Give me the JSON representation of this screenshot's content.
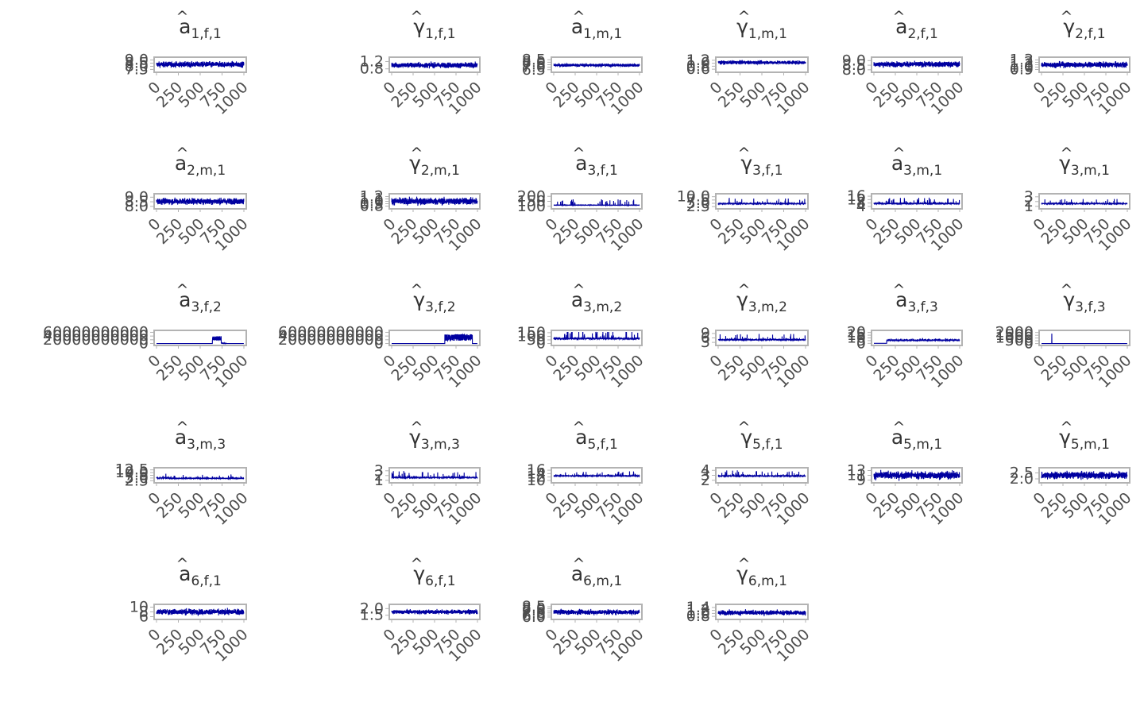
{
  "chart_data": {
    "type": "line",
    "x_ticks": [
      "0",
      "250",
      "500",
      "750",
      "1000"
    ],
    "xlim": [
      0,
      1000
    ],
    "series_color": "#0000A0",
    "panel_border_color": "#B3B3B3",
    "grid": false,
    "panels": [
      {
        "greek": "a",
        "sub": "1,f,1",
        "y_ticks": [
          "7.5",
          "8.0",
          "8.5",
          "9.0"
        ],
        "ylim": [
          7.3,
          9.2
        ],
        "base": 8.3,
        "amp": 0.45,
        "pattern": "dense"
      },
      {
        "greek": "γ",
        "sub": "1,f,1",
        "y_ticks": [
          "0.8",
          "1.2"
        ],
        "ylim": [
          0.7,
          1.35
        ],
        "base": 1.0,
        "amp": 0.15,
        "pattern": "dense"
      },
      {
        "greek": "a",
        "sub": "1,m,1",
        "y_ticks": [
          "6.5",
          "7.0",
          "7.5",
          "8.0",
          "8.5"
        ],
        "ylim": [
          6.3,
          8.7
        ],
        "base": 7.4,
        "amp": 0.4,
        "pattern": "medium"
      },
      {
        "greek": "γ",
        "sub": "1,m,1",
        "y_ticks": [
          "0.6",
          "0.8",
          "1.0",
          "1.2"
        ],
        "ylim": [
          0.5,
          1.3
        ],
        "base": 1.05,
        "amp": 0.15,
        "pattern": "medium"
      },
      {
        "greek": "a",
        "sub": "2,f,1",
        "y_ticks": [
          "8.0",
          "8.5",
          "9.0"
        ],
        "ylim": [
          7.9,
          9.2
        ],
        "base": 8.6,
        "amp": 0.3,
        "pattern": "dense"
      },
      {
        "greek": "γ",
        "sub": "2,f,1",
        "y_ticks": [
          "0.9",
          "1.0",
          "1.1",
          "1.2",
          "1.3"
        ],
        "ylim": [
          0.85,
          1.35
        ],
        "base": 1.1,
        "amp": 0.12,
        "pattern": "dense"
      },
      {
        "greek": "a",
        "sub": "2,m,1",
        "y_ticks": [
          "8.0",
          "8.5",
          "9.0"
        ],
        "ylim": [
          7.9,
          9.2
        ],
        "base": 8.55,
        "amp": 0.35,
        "pattern": "dense"
      },
      {
        "greek": "γ",
        "sub": "2,m,1",
        "y_ticks": [
          "0.8",
          "0.9",
          "1.0",
          "1.1",
          "1.2"
        ],
        "ylim": [
          0.75,
          1.25
        ],
        "base": 1.0,
        "amp": 0.15,
        "pattern": "dense"
      },
      {
        "greek": "a",
        "sub": "3,f,1",
        "y_ticks": [
          "100",
          "150",
          "200"
        ],
        "ylim": [
          90,
          210
        ],
        "base": 110,
        "amp": 15,
        "pattern": "bursty"
      },
      {
        "greek": "γ",
        "sub": "3,f,1",
        "y_ticks": [
          "2.5",
          "5.0",
          "7.5",
          "10.0"
        ],
        "ylim": [
          2,
          11
        ],
        "base": 4.5,
        "amp": 2.0,
        "pattern": "spiky"
      },
      {
        "greek": "a",
        "sub": "3,m,1",
        "y_ticks": [
          "4",
          "8",
          "12",
          "16"
        ],
        "ylim": [
          3,
          17
        ],
        "base": 7,
        "amp": 3,
        "pattern": "spiky"
      },
      {
        "greek": "γ",
        "sub": "3,m,1",
        "y_ticks": [
          "1",
          "2",
          "3"
        ],
        "ylim": [
          0.8,
          3.3
        ],
        "base": 1.5,
        "amp": 0.5,
        "pattern": "spiky"
      },
      {
        "greek": "a",
        "sub": "3,f,2",
        "y_ticks": [
          "0",
          "20000000000",
          "40000000000",
          "60000000000"
        ],
        "ylim": [
          -2000000000,
          62000000000
        ],
        "base": 0,
        "amp": 1,
        "pattern": "flat-bump",
        "bump_start": 640,
        "bump_end": 740,
        "bump_height": 40000000000
      },
      {
        "greek": "γ",
        "sub": "3,f,2",
        "y_ticks": [
          "0",
          "20000000000",
          "40000000000",
          "60000000000"
        ],
        "ylim": [
          -2000000000,
          62000000000
        ],
        "base": 0,
        "amp": 1,
        "pattern": "flat-block",
        "bump_start": 620,
        "bump_end": 1000,
        "bump_height": 50000000000
      },
      {
        "greek": "a",
        "sub": "3,m,2",
        "y_ticks": [
          "0",
          "50",
          "100",
          "150"
        ],
        "ylim": [
          -5,
          160
        ],
        "base": 60,
        "amp": 60,
        "pattern": "spiky"
      },
      {
        "greek": "γ",
        "sub": "3,m,2",
        "y_ticks": [
          "3",
          "6",
          "9"
        ],
        "ylim": [
          2,
          10
        ],
        "base": 4.5,
        "amp": 2,
        "pattern": "spiky"
      },
      {
        "greek": "a",
        "sub": "3,f,3",
        "y_ticks": [
          "0",
          "5",
          "10",
          "15",
          "20"
        ],
        "ylim": [
          -1,
          21
        ],
        "base": 5,
        "amp": 3,
        "pattern": "late-start",
        "start": 150
      },
      {
        "greek": "γ",
        "sub": "3,f,3",
        "y_ticks": [
          "0",
          "500",
          "1000",
          "1500",
          "2000"
        ],
        "ylim": [
          -60,
          2100
        ],
        "base": 5,
        "amp": 3,
        "pattern": "single-spike",
        "spike_at": 120,
        "spike_height": 1800
      },
      {
        "greek": "a",
        "sub": "3,m,3",
        "y_ticks": [
          "2.5",
          "5.0",
          "7.5",
          "10.0",
          "12.5"
        ],
        "ylim": [
          2,
          13
        ],
        "base": 4.5,
        "amp": 1.8,
        "pattern": "spiky-decay"
      },
      {
        "greek": "γ",
        "sub": "3,m,3",
        "y_ticks": [
          "1",
          "2",
          "3"
        ],
        "ylim": [
          0.8,
          3.3
        ],
        "base": 1.5,
        "amp": 0.6,
        "pattern": "spiky"
      },
      {
        "greek": "a",
        "sub": "5,f,1",
        "y_ticks": [
          "10",
          "12",
          "14",
          "16"
        ],
        "ylim": [
          9.5,
          16.5
        ],
        "base": 12.5,
        "amp": 1.2,
        "pattern": "spiky"
      },
      {
        "greek": "γ",
        "sub": "5,f,1",
        "y_ticks": [
          "2",
          "3",
          "4"
        ],
        "ylim": [
          1.8,
          4.2
        ],
        "base": 2.8,
        "amp": 0.5,
        "pattern": "spiky"
      },
      {
        "greek": "a",
        "sub": "5,m,1",
        "y_ticks": [
          "9",
          "11",
          "13"
        ],
        "ylim": [
          8.5,
          13.5
        ],
        "base": 11,
        "amp": 1.6,
        "pattern": "dense"
      },
      {
        "greek": "γ",
        "sub": "5,m,1",
        "y_ticks": [
          "2.0",
          "2.5"
        ],
        "ylim": [
          1.8,
          2.8
        ],
        "base": 2.3,
        "amp": 0.3,
        "pattern": "dense"
      },
      {
        "greek": "a",
        "sub": "6,f,1",
        "y_ticks": [
          "6",
          "8",
          "10"
        ],
        "ylim": [
          5.5,
          10.5
        ],
        "base": 8,
        "amp": 1.2,
        "pattern": "dense"
      },
      {
        "greek": "γ",
        "sub": "6,f,1",
        "y_ticks": [
          "1.5",
          "2.0"
        ],
        "ylim": [
          1.3,
          2.2
        ],
        "base": 1.75,
        "amp": 0.2,
        "pattern": "medium"
      },
      {
        "greek": "a",
        "sub": "6,m,1",
        "y_ticks": [
          "6.0",
          "6.5",
          "7.0",
          "7.5",
          "8.0",
          "8.5"
        ],
        "ylim": [
          5.8,
          8.7
        ],
        "base": 7.2,
        "amp": 0.6,
        "pattern": "dense"
      },
      {
        "greek": "γ",
        "sub": "6,m,1",
        "y_ticks": [
          "0.8",
          "1.0",
          "1.2",
          "1.4"
        ],
        "ylim": [
          0.7,
          1.5
        ],
        "base": 1.05,
        "amp": 0.2,
        "pattern": "medium"
      }
    ]
  }
}
